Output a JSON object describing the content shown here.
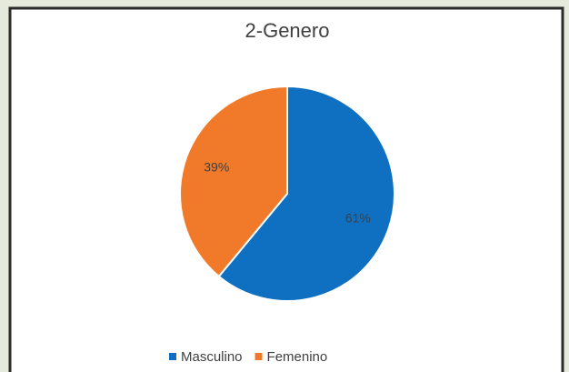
{
  "chart_data": {
    "type": "pie",
    "title": "2-Genero",
    "categories": [
      "Masculino",
      "Femenino"
    ],
    "values": [
      61,
      39
    ],
    "value_labels": [
      "61%",
      "39%"
    ],
    "colors": [
      "#0f6fc0",
      "#f07a2a"
    ]
  }
}
